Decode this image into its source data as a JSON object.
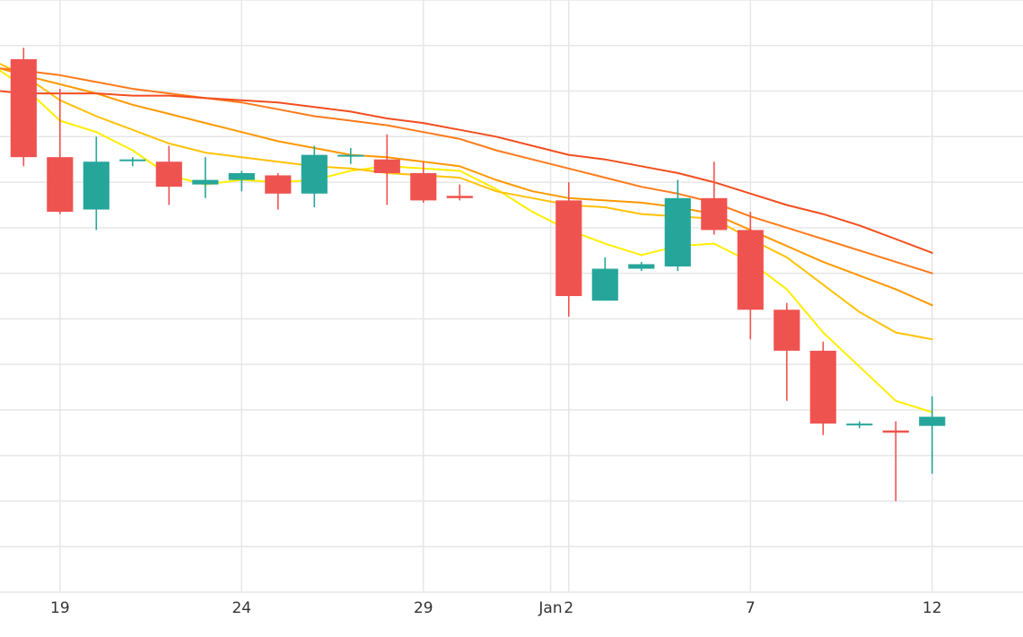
{
  "chart_data": {
    "type": "candlestick",
    "title": "",
    "xlabel": "",
    "ylabel": "",
    "x_tick_labels": [
      {
        "day": 19,
        "label": "19"
      },
      {
        "day": 24,
        "label": "24"
      },
      {
        "day": 29,
        "label": "29"
      },
      {
        "day": 32.5,
        "label": "Jan"
      },
      {
        "day": 33,
        "label": "2"
      },
      {
        "day": 38,
        "label": "7"
      },
      {
        "day": 43,
        "label": "12"
      }
    ],
    "xlim": [
      17.35,
      45.5
    ],
    "ylim": [
      0,
      13
    ],
    "y_tick_labels_visible": false,
    "grid": true,
    "colors": {
      "up": "#26a69a",
      "down": "#ef5350",
      "grid": "#e6e6e6",
      "ma_lines": [
        "#ffee00",
        "#ffc107",
        "#ff9800",
        "#ff7a1a",
        "#f24e1e"
      ]
    },
    "candles": [
      {
        "day": 18,
        "open": 11.7,
        "high": 11.95,
        "low": 9.35,
        "close": 9.55
      },
      {
        "day": 19,
        "open": 9.55,
        "high": 11.05,
        "low": 8.3,
        "close": 8.35
      },
      {
        "day": 20,
        "open": 8.4,
        "high": 10.0,
        "low": 7.95,
        "close": 9.45
      },
      {
        "day": 21,
        "open": 9.5,
        "high": 9.55,
        "low": 9.35,
        "close": 9.5
      },
      {
        "day": 22,
        "open": 9.45,
        "high": 9.8,
        "low": 8.5,
        "close": 8.9
      },
      {
        "day": 23,
        "open": 8.95,
        "high": 9.55,
        "low": 8.65,
        "close": 9.05
      },
      {
        "day": 24,
        "open": 9.05,
        "high": 9.25,
        "low": 8.8,
        "close": 9.2
      },
      {
        "day": 25,
        "open": 9.15,
        "high": 9.2,
        "low": 8.4,
        "close": 8.75
      },
      {
        "day": 26,
        "open": 8.75,
        "high": 9.8,
        "low": 8.45,
        "close": 9.6
      },
      {
        "day": 27,
        "open": 9.6,
        "high": 9.75,
        "low": 9.4,
        "close": 9.6
      },
      {
        "day": 28,
        "open": 9.5,
        "high": 10.05,
        "low": 8.5,
        "close": 9.2
      },
      {
        "day": 29,
        "open": 9.2,
        "high": 9.45,
        "low": 8.55,
        "close": 8.6
      },
      {
        "day": 30,
        "open": 8.7,
        "high": 8.95,
        "low": 8.6,
        "close": 8.65
      },
      {
        "day": 33,
        "open": 8.6,
        "high": 9.0,
        "low": 6.05,
        "close": 6.5
      },
      {
        "day": 34,
        "open": 6.4,
        "high": 7.35,
        "low": 6.4,
        "close": 7.1
      },
      {
        "day": 35,
        "open": 7.1,
        "high": 7.25,
        "low": 7.05,
        "close": 7.2
      },
      {
        "day": 36,
        "open": 7.15,
        "high": 9.05,
        "low": 7.05,
        "close": 8.65
      },
      {
        "day": 37,
        "open": 8.65,
        "high": 9.45,
        "low": 7.85,
        "close": 7.95
      },
      {
        "day": 38,
        "open": 7.95,
        "high": 8.35,
        "low": 5.55,
        "close": 6.2
      },
      {
        "day": 39,
        "open": 6.2,
        "high": 6.35,
        "low": 4.2,
        "close": 5.3
      },
      {
        "day": 40,
        "open": 5.3,
        "high": 5.5,
        "low": 3.45,
        "close": 3.7
      },
      {
        "day": 41,
        "open": 3.7,
        "high": 3.75,
        "low": 3.6,
        "close": 3.7
      },
      {
        "day": 42,
        "open": 3.55,
        "high": 3.75,
        "low": 2.0,
        "close": 3.5
      },
      {
        "day": 43,
        "open": 3.65,
        "high": 4.3,
        "low": 2.6,
        "close": 3.85
      }
    ],
    "moving_averages": [
      {
        "points": [
          [
            17.35,
            11.45
          ],
          [
            18,
            11.1
          ],
          [
            19,
            10.35
          ],
          [
            20,
            10.1
          ],
          [
            21,
            9.7
          ],
          [
            22,
            9.15
          ],
          [
            23,
            8.95
          ],
          [
            24,
            9.05
          ],
          [
            25,
            9.0
          ],
          [
            26,
            9.05
          ],
          [
            27,
            9.25
          ],
          [
            28,
            9.35
          ],
          [
            29,
            9.3
          ],
          [
            30,
            9.25
          ],
          [
            31,
            8.85
          ],
          [
            32,
            8.35
          ],
          [
            33,
            7.95
          ],
          [
            34,
            7.65
          ],
          [
            35,
            7.4
          ],
          [
            36,
            7.6
          ],
          [
            37,
            7.65
          ],
          [
            38,
            7.25
          ],
          [
            39,
            6.65
          ],
          [
            40,
            5.7
          ],
          [
            41,
            4.95
          ],
          [
            42,
            4.2
          ],
          [
            43,
            3.95
          ]
        ]
      },
      {
        "points": [
          [
            17.35,
            11.6
          ],
          [
            18,
            11.35
          ],
          [
            19,
            10.8
          ],
          [
            20,
            10.45
          ],
          [
            21,
            10.15
          ],
          [
            22,
            9.85
          ],
          [
            23,
            9.65
          ],
          [
            24,
            9.55
          ],
          [
            25,
            9.45
          ],
          [
            26,
            9.35
          ],
          [
            27,
            9.3
          ],
          [
            28,
            9.2
          ],
          [
            29,
            9.15
          ],
          [
            30,
            9.1
          ],
          [
            31,
            8.8
          ],
          [
            32,
            8.65
          ],
          [
            33,
            8.5
          ],
          [
            34,
            8.45
          ],
          [
            35,
            8.3
          ],
          [
            36,
            8.25
          ],
          [
            37,
            8.2
          ],
          [
            38,
            7.75
          ],
          [
            39,
            7.35
          ],
          [
            40,
            6.75
          ],
          [
            41,
            6.15
          ],
          [
            42,
            5.7
          ],
          [
            43,
            5.55
          ]
        ]
      },
      {
        "points": [
          [
            17.35,
            11.5
          ],
          [
            18,
            11.35
          ],
          [
            19,
            11.15
          ],
          [
            20,
            10.95
          ],
          [
            21,
            10.7
          ],
          [
            22,
            10.5
          ],
          [
            23,
            10.3
          ],
          [
            24,
            10.1
          ],
          [
            25,
            9.9
          ],
          [
            26,
            9.75
          ],
          [
            27,
            9.6
          ],
          [
            28,
            9.55
          ],
          [
            29,
            9.45
          ],
          [
            30,
            9.35
          ],
          [
            31,
            9.05
          ],
          [
            32,
            8.8
          ],
          [
            33,
            8.65
          ],
          [
            34,
            8.6
          ],
          [
            35,
            8.55
          ],
          [
            36,
            8.45
          ],
          [
            37,
            8.3
          ],
          [
            38,
            7.95
          ],
          [
            39,
            7.6
          ],
          [
            40,
            7.25
          ],
          [
            41,
            6.95
          ],
          [
            42,
            6.65
          ],
          [
            43,
            6.3
          ]
        ]
      },
      {
        "points": [
          [
            17.35,
            11.5
          ],
          [
            18,
            11.45
          ],
          [
            19,
            11.35
          ],
          [
            20,
            11.2
          ],
          [
            21,
            11.05
          ],
          [
            22,
            10.95
          ],
          [
            23,
            10.85
          ],
          [
            24,
            10.75
          ],
          [
            25,
            10.6
          ],
          [
            26,
            10.45
          ],
          [
            27,
            10.35
          ],
          [
            28,
            10.25
          ],
          [
            29,
            10.1
          ],
          [
            30,
            9.95
          ],
          [
            31,
            9.7
          ],
          [
            32,
            9.5
          ],
          [
            33,
            9.3
          ],
          [
            34,
            9.1
          ],
          [
            35,
            8.9
          ],
          [
            36,
            8.75
          ],
          [
            37,
            8.55
          ],
          [
            38,
            8.25
          ],
          [
            39,
            8.0
          ],
          [
            40,
            7.75
          ],
          [
            41,
            7.5
          ],
          [
            42,
            7.25
          ],
          [
            43,
            7.0
          ]
        ]
      },
      {
        "points": [
          [
            17.35,
            11.0
          ],
          [
            18,
            10.95
          ],
          [
            19,
            10.95
          ],
          [
            20,
            10.95
          ],
          [
            21,
            10.9
          ],
          [
            22,
            10.9
          ],
          [
            23,
            10.85
          ],
          [
            24,
            10.8
          ],
          [
            25,
            10.75
          ],
          [
            26,
            10.65
          ],
          [
            27,
            10.55
          ],
          [
            28,
            10.4
          ],
          [
            29,
            10.3
          ],
          [
            30,
            10.15
          ],
          [
            31,
            10.0
          ],
          [
            32,
            9.8
          ],
          [
            33,
            9.6
          ],
          [
            34,
            9.5
          ],
          [
            35,
            9.35
          ],
          [
            36,
            9.2
          ],
          [
            37,
            9.0
          ],
          [
            38,
            8.75
          ],
          [
            39,
            8.5
          ],
          [
            40,
            8.3
          ],
          [
            41,
            8.05
          ],
          [
            42,
            7.75
          ],
          [
            43,
            7.45
          ]
        ]
      }
    ]
  }
}
